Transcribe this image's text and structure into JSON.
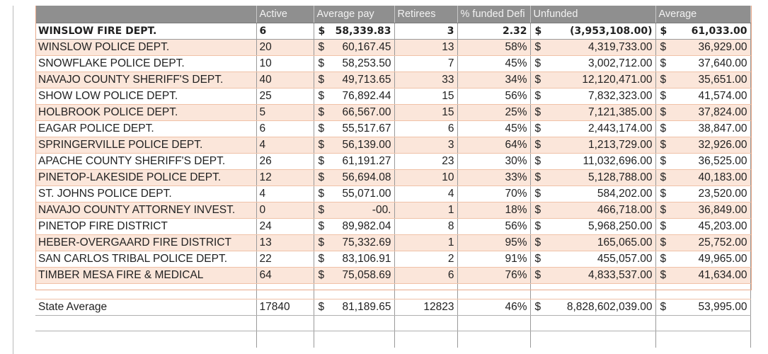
{
  "headers": {
    "name": "",
    "active": "Active",
    "avg_pay": "Average pay",
    "retirees": "Retirees",
    "funded": "% funded Defi",
    "unfunded": "Unfunded",
    "average": "Average"
  },
  "rows": [
    {
      "name": "WINSLOW FIRE DEPT.",
      "active": "6",
      "avg_pay": "58,339.83",
      "retirees": "3",
      "funded": "2.32",
      "unfunded": "(3,953,108.00)",
      "average": "61,033.00"
    },
    {
      "name": "WINSLOW POLICE DEPT.",
      "active": "20",
      "avg_pay": "60,167.45",
      "retirees": "13",
      "funded": "58%",
      "unfunded": "4,319,733.00",
      "average": "36,929.00"
    },
    {
      "name": "SNOWFLAKE POLICE DEPT.",
      "active": "10",
      "avg_pay": "58,253.50",
      "retirees": "7",
      "funded": "45%",
      "unfunded": "3,002,712.00",
      "average": "37,640.00"
    },
    {
      "name": "NAVAJO COUNTY SHERIFF'S DEPT.",
      "active": "40",
      "avg_pay": "49,713.65",
      "retirees": "33",
      "funded": "34%",
      "unfunded": "12,120,471.00",
      "average": "35,651.00"
    },
    {
      "name": "SHOW LOW POLICE DEPT.",
      "active": "25",
      "avg_pay": "76,892.44",
      "retirees": "15",
      "funded": "56%",
      "unfunded": "7,832,323.00",
      "average": "41,574.00"
    },
    {
      "name": "HOLBROOK POLICE DEPT.",
      "active": "5",
      "avg_pay": "66,567.00",
      "retirees": "15",
      "funded": "25%",
      "unfunded": "7,121,385.00",
      "average": "37,824.00"
    },
    {
      "name": "EAGAR POLICE DEPT.",
      "active": "6",
      "avg_pay": "55,517.67",
      "retirees": "6",
      "funded": "45%",
      "unfunded": "2,443,174.00",
      "average": "38,847.00"
    },
    {
      "name": "SPRINGERVILLE POLICE DEPT.",
      "active": "4",
      "avg_pay": "56,139.00",
      "retirees": "3",
      "funded": "64%",
      "unfunded": "1,213,729.00",
      "average": "32,926.00"
    },
    {
      "name": "APACHE COUNTY SHERIFF'S DEPT.",
      "active": "26",
      "avg_pay": "61,191.27",
      "retirees": "23",
      "funded": "30%",
      "unfunded": "11,032,696.00",
      "average": "36,525.00"
    },
    {
      "name": "PINETOP-LAKESIDE POLICE DEPT.",
      "active": "12",
      "avg_pay": "56,694.08",
      "retirees": "10",
      "funded": "33%",
      "unfunded": "5,128,788.00",
      "average": "40,183.00"
    },
    {
      "name": "ST. JOHNS POLICE DEPT.",
      "active": "4",
      "avg_pay": "55,071.00",
      "retirees": "4",
      "funded": "70%",
      "unfunded": "584,202.00",
      "average": "23,520.00"
    },
    {
      "name": "NAVAJO COUNTY ATTORNEY INVEST.",
      "active": "0",
      "avg_pay": "-00.",
      "retirees": "1",
      "funded": "18%",
      "unfunded": "466,718.00",
      "average": "36,849.00"
    },
    {
      "name": "PINETOP FIRE DISTRICT",
      "active": "24",
      "avg_pay": "89,982.04",
      "retirees": "8",
      "funded": "56%",
      "unfunded": "5,968,250.00",
      "average": "45,203.00"
    },
    {
      "name": "HEBER-OVERGAARD FIRE DISTRICT",
      "active": "13",
      "avg_pay": "75,332.69",
      "retirees": "1",
      "funded": "95%",
      "unfunded": "165,065.00",
      "average": "25,752.00"
    },
    {
      "name": "SAN CARLOS TRIBAL POLICE DEPT.",
      "active": "22",
      "avg_pay": "83,106.91",
      "retirees": "2",
      "funded": "91%",
      "unfunded": "455,057.00",
      "average": "49,965.00"
    },
    {
      "name": "TIMBER MESA FIRE & MEDICAL",
      "active": "64",
      "avg_pay": "75,058.69",
      "retirees": "6",
      "funded": "76%",
      "unfunded": "4,833,537.00",
      "average": "41,634.00"
    }
  ],
  "state": {
    "name": "State Average",
    "active": "17840",
    "avg_pay": "81,189.65",
    "retirees": "12823",
    "funded": "46%",
    "unfunded": "8,828,602,039.00",
    "average": "53,995.00"
  },
  "currency_symbol": "$"
}
